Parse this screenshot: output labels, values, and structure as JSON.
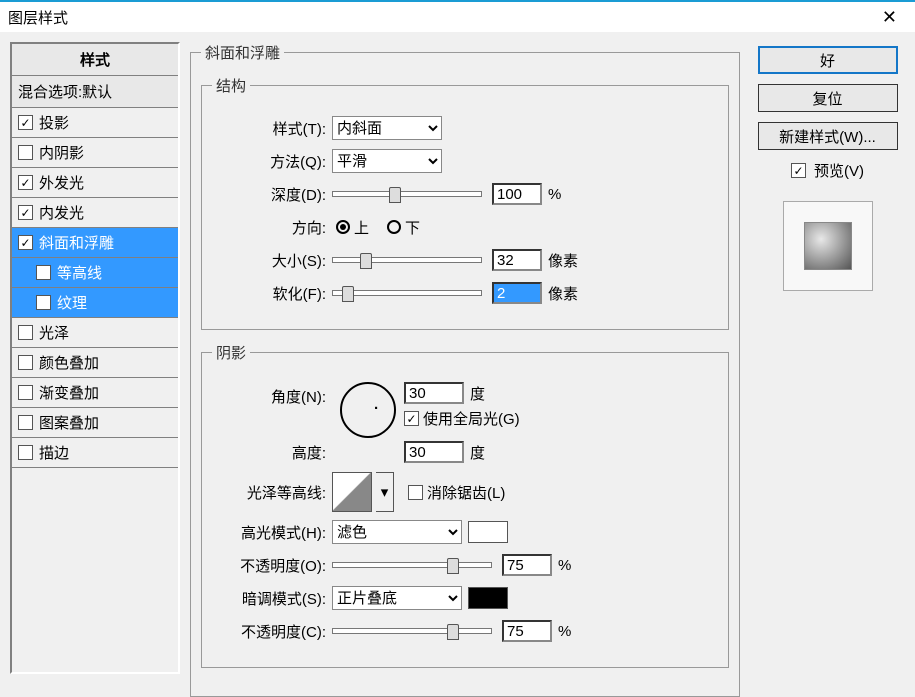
{
  "window": {
    "title": "图层样式",
    "close_icon": "✕"
  },
  "sidebar": {
    "header": "样式",
    "subheader": "混合选项:默认",
    "items": [
      {
        "label": "投影",
        "checked": true,
        "selected": false,
        "child": false
      },
      {
        "label": "内阴影",
        "checked": false,
        "selected": false,
        "child": false
      },
      {
        "label": "外发光",
        "checked": true,
        "selected": false,
        "child": false
      },
      {
        "label": "内发光",
        "checked": true,
        "selected": false,
        "child": false
      },
      {
        "label": "斜面和浮雕",
        "checked": true,
        "selected": true,
        "child": false
      },
      {
        "label": "等高线",
        "checked": false,
        "selected": true,
        "child": true
      },
      {
        "label": "纹理",
        "checked": false,
        "selected": true,
        "child": true
      },
      {
        "label": "光泽",
        "checked": false,
        "selected": false,
        "child": false
      },
      {
        "label": "颜色叠加",
        "checked": false,
        "selected": false,
        "child": false
      },
      {
        "label": "渐变叠加",
        "checked": false,
        "selected": false,
        "child": false
      },
      {
        "label": "图案叠加",
        "checked": false,
        "selected": false,
        "child": false
      },
      {
        "label": "描边",
        "checked": false,
        "selected": false,
        "child": false
      }
    ]
  },
  "main": {
    "panel_title": "斜面和浮雕",
    "structure": {
      "legend": "结构",
      "style_label": "样式(T):",
      "style_value": "内斜面",
      "technique_label": "方法(Q):",
      "technique_value": "平滑",
      "depth_label": "深度(D):",
      "depth_value": "100",
      "depth_unit": "%",
      "depth_pct": 38,
      "direction_label": "方向:",
      "dir_up": "上",
      "dir_down": "下",
      "dir_selected": "up",
      "size_label": "大小(S):",
      "size_value": "32",
      "size_unit": "像素",
      "size_pct": 18,
      "soften_label": "软化(F):",
      "soften_value": "2",
      "soften_unit": "像素",
      "soften_pct": 6
    },
    "shading": {
      "legend": "阴影",
      "angle_label": "角度(N):",
      "angle_value": "30",
      "angle_unit": "度",
      "global_light_label": "使用全局光(G)",
      "global_light_checked": true,
      "altitude_label": "高度:",
      "altitude_value": "30",
      "altitude_unit": "度",
      "gloss_contour_label": "光泽等高线:",
      "antialias_label": "消除锯齿(L)",
      "antialias_checked": false,
      "highlight_mode_label": "高光模式(H):",
      "highlight_mode_value": "滤色",
      "highlight_color": "#ffffff",
      "highlight_opacity_label": "不透明度(O):",
      "highlight_opacity_value": "75",
      "highlight_opacity_unit": "%",
      "highlight_opacity_pct": 72,
      "shadow_mode_label": "暗调模式(S):",
      "shadow_mode_value": "正片叠底",
      "shadow_color": "#000000",
      "shadow_opacity_label": "不透明度(C):",
      "shadow_opacity_value": "75",
      "shadow_opacity_unit": "%",
      "shadow_opacity_pct": 72
    }
  },
  "buttons": {
    "ok": "好",
    "cancel": "复位",
    "new_style": "新建样式(W)...",
    "preview_label": "预览(V)",
    "preview_checked": true
  },
  "colors": {
    "accent": "#3399ff",
    "titlebar_border": "#1a9cd4"
  }
}
